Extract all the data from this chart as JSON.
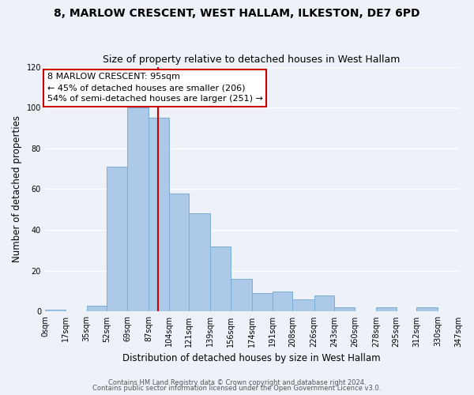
{
  "title": "8, MARLOW CRESCENT, WEST HALLAM, ILKESTON, DE7 6PD",
  "subtitle": "Size of property relative to detached houses in West Hallam",
  "xlabel": "Distribution of detached houses by size in West Hallam",
  "ylabel": "Number of detached properties",
  "footer_line1": "Contains HM Land Registry data © Crown copyright and database right 2024.",
  "footer_line2": "Contains public sector information licensed under the Open Government Licence v3.0.",
  "bar_edges": [
    0,
    17,
    35,
    52,
    69,
    87,
    104,
    121,
    139,
    156,
    174,
    191,
    208,
    226,
    243,
    260,
    278,
    295,
    312,
    330,
    347
  ],
  "bar_heights": [
    1,
    0,
    3,
    71,
    100,
    95,
    58,
    48,
    32,
    16,
    9,
    10,
    6,
    8,
    2,
    0,
    2,
    0,
    2,
    0
  ],
  "bar_color": "#adc9e8",
  "bar_edgecolor": "#7aadd4",
  "marker_x": 95,
  "marker_label": "8 MARLOW CRESCENT: 95sqm",
  "annotation_line1": "← 45% of detached houses are smaller (206)",
  "annotation_line2": "54% of semi-detached houses are larger (251) →",
  "vline_color": "#cc0000",
  "annotation_box_edgecolor": "#cc0000",
  "ylim": [
    0,
    120
  ],
  "xlim": [
    0,
    347
  ],
  "tick_labels": [
    "0sqm",
    "17sqm",
    "35sqm",
    "52sqm",
    "69sqm",
    "87sqm",
    "104sqm",
    "121sqm",
    "139sqm",
    "156sqm",
    "174sqm",
    "191sqm",
    "208sqm",
    "226sqm",
    "243sqm",
    "260sqm",
    "278sqm",
    "295sqm",
    "312sqm",
    "330sqm",
    "347sqm"
  ],
  "title_fontsize": 10,
  "subtitle_fontsize": 9,
  "axis_label_fontsize": 8.5,
  "tick_fontsize": 7,
  "annotation_fontsize": 8,
  "footer_fontsize": 6,
  "background_color": "#eef2f8"
}
